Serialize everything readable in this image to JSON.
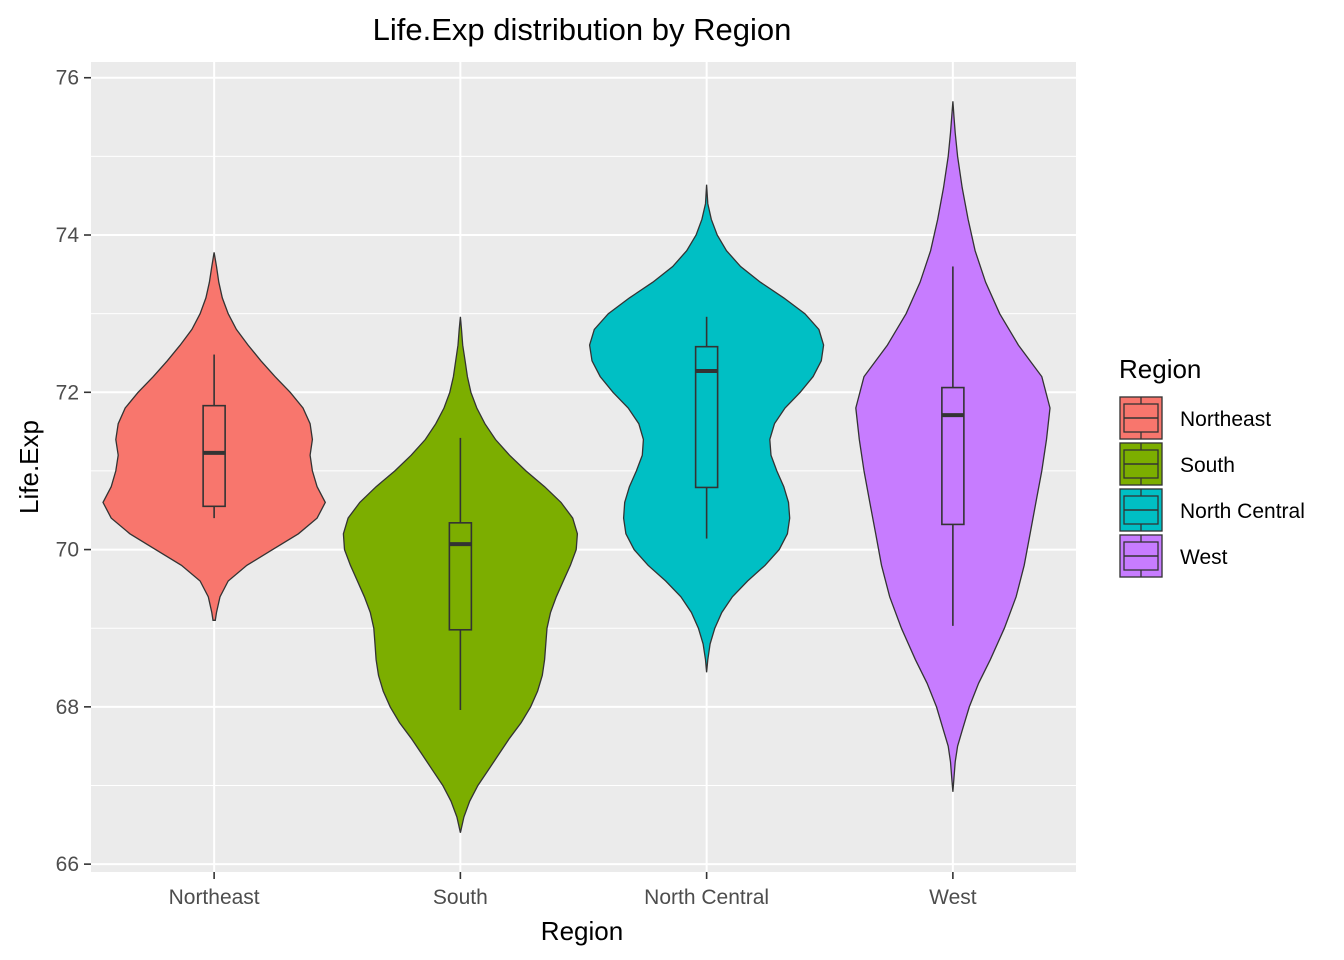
{
  "chart_data": {
    "type": "violin",
    "title": "Life.Exp distribution by Region",
    "xlabel": "Region",
    "ylabel": "Life.Exp",
    "ylim": [
      65.9,
      76.2
    ],
    "yticks": [
      66,
      68,
      70,
      72,
      74,
      76
    ],
    "grid": true,
    "legend": {
      "title": "Region",
      "position": "right"
    },
    "categories": [
      "Northeast",
      "South",
      "North Central",
      "West"
    ],
    "series": [
      {
        "name": "Northeast",
        "color": "#F8766D",
        "box": {
          "min": 70.4,
          "q1": 70.55,
          "median": 71.23,
          "q3": 71.83,
          "max": 72.48
        },
        "range": [
          69.1,
          73.78
        ],
        "density": [
          [
            69.1,
            0.01
          ],
          [
            69.2,
            0.02
          ],
          [
            69.4,
            0.05
          ],
          [
            69.6,
            0.12
          ],
          [
            69.8,
            0.28
          ],
          [
            70.0,
            0.5
          ],
          [
            70.2,
            0.72
          ],
          [
            70.4,
            0.88
          ],
          [
            70.6,
            0.95
          ],
          [
            70.8,
            0.88
          ],
          [
            71.0,
            0.84
          ],
          [
            71.2,
            0.82
          ],
          [
            71.4,
            0.84
          ],
          [
            71.6,
            0.82
          ],
          [
            71.8,
            0.76
          ],
          [
            72.0,
            0.65
          ],
          [
            72.2,
            0.52
          ],
          [
            72.4,
            0.4
          ],
          [
            72.6,
            0.29
          ],
          [
            72.8,
            0.19
          ],
          [
            73.0,
            0.12
          ],
          [
            73.2,
            0.07
          ],
          [
            73.4,
            0.04
          ],
          [
            73.6,
            0.02
          ],
          [
            73.78,
            0.0
          ]
        ]
      },
      {
        "name": "South",
        "color": "#7CAE00",
        "box": {
          "min": 67.96,
          "q1": 68.98,
          "median": 70.07,
          "q3": 70.34,
          "max": 71.42
        },
        "range": [
          66.4,
          72.96
        ],
        "density": [
          [
            66.4,
            0.0
          ],
          [
            66.6,
            0.03
          ],
          [
            66.8,
            0.08
          ],
          [
            67.0,
            0.15
          ],
          [
            67.2,
            0.24
          ],
          [
            67.4,
            0.33
          ],
          [
            67.6,
            0.42
          ],
          [
            67.8,
            0.52
          ],
          [
            68.0,
            0.6
          ],
          [
            68.2,
            0.66
          ],
          [
            68.4,
            0.7
          ],
          [
            68.6,
            0.72
          ],
          [
            68.8,
            0.73
          ],
          [
            69.0,
            0.74
          ],
          [
            69.2,
            0.77
          ],
          [
            69.4,
            0.82
          ],
          [
            69.6,
            0.88
          ],
          [
            69.8,
            0.94
          ],
          [
            70.0,
            0.99
          ],
          [
            70.2,
            1.0
          ],
          [
            70.4,
            0.96
          ],
          [
            70.6,
            0.86
          ],
          [
            70.8,
            0.72
          ],
          [
            71.0,
            0.56
          ],
          [
            71.2,
            0.42
          ],
          [
            71.4,
            0.3
          ],
          [
            71.6,
            0.21
          ],
          [
            71.8,
            0.14
          ],
          [
            72.0,
            0.09
          ],
          [
            72.2,
            0.06
          ],
          [
            72.4,
            0.04
          ],
          [
            72.6,
            0.02
          ],
          [
            72.8,
            0.01
          ],
          [
            72.96,
            0.0
          ]
        ]
      },
      {
        "name": "North Central",
        "color": "#00BFC4",
        "box": {
          "min": 70.14,
          "q1": 70.79,
          "median": 72.27,
          "q3": 72.58,
          "max": 72.96
        },
        "range": [
          68.44,
          74.64
        ],
        "density": [
          [
            68.44,
            0.0
          ],
          [
            68.6,
            0.01
          ],
          [
            68.8,
            0.03
          ],
          [
            69.0,
            0.07
          ],
          [
            69.2,
            0.13
          ],
          [
            69.4,
            0.22
          ],
          [
            69.6,
            0.35
          ],
          [
            69.8,
            0.5
          ],
          [
            70.0,
            0.62
          ],
          [
            70.2,
            0.69
          ],
          [
            70.4,
            0.71
          ],
          [
            70.6,
            0.7
          ],
          [
            70.8,
            0.66
          ],
          [
            71.0,
            0.6
          ],
          [
            71.2,
            0.55
          ],
          [
            71.4,
            0.54
          ],
          [
            71.6,
            0.58
          ],
          [
            71.8,
            0.67
          ],
          [
            72.0,
            0.8
          ],
          [
            72.2,
            0.91
          ],
          [
            72.4,
            0.98
          ],
          [
            72.6,
            1.0
          ],
          [
            72.8,
            0.96
          ],
          [
            73.0,
            0.84
          ],
          [
            73.2,
            0.66
          ],
          [
            73.4,
            0.46
          ],
          [
            73.6,
            0.29
          ],
          [
            73.8,
            0.17
          ],
          [
            74.0,
            0.09
          ],
          [
            74.2,
            0.04
          ],
          [
            74.4,
            0.01
          ],
          [
            74.64,
            0.0
          ]
        ]
      },
      {
        "name": "West",
        "color": "#C77CFF",
        "box": {
          "min": 69.03,
          "q1": 70.32,
          "median": 71.71,
          "q3": 72.06,
          "max": 73.6
        },
        "range": [
          66.92,
          75.7
        ],
        "density": [
          [
            66.92,
            0.0
          ],
          [
            67.1,
            0.01
          ],
          [
            67.3,
            0.02
          ],
          [
            67.5,
            0.04
          ],
          [
            67.7,
            0.08
          ],
          [
            68.0,
            0.14
          ],
          [
            68.3,
            0.22
          ],
          [
            68.6,
            0.32
          ],
          [
            69.0,
            0.44
          ],
          [
            69.4,
            0.54
          ],
          [
            69.8,
            0.61
          ],
          [
            70.2,
            0.66
          ],
          [
            70.6,
            0.71
          ],
          [
            71.0,
            0.76
          ],
          [
            71.4,
            0.8
          ],
          [
            71.8,
            0.83
          ],
          [
            72.2,
            0.76
          ],
          [
            72.6,
            0.56
          ],
          [
            73.0,
            0.4
          ],
          [
            73.4,
            0.28
          ],
          [
            73.8,
            0.19
          ],
          [
            74.2,
            0.13
          ],
          [
            74.6,
            0.08
          ],
          [
            75.0,
            0.04
          ],
          [
            75.3,
            0.02
          ],
          [
            75.5,
            0.01
          ],
          [
            75.7,
            0.0
          ]
        ]
      }
    ]
  }
}
